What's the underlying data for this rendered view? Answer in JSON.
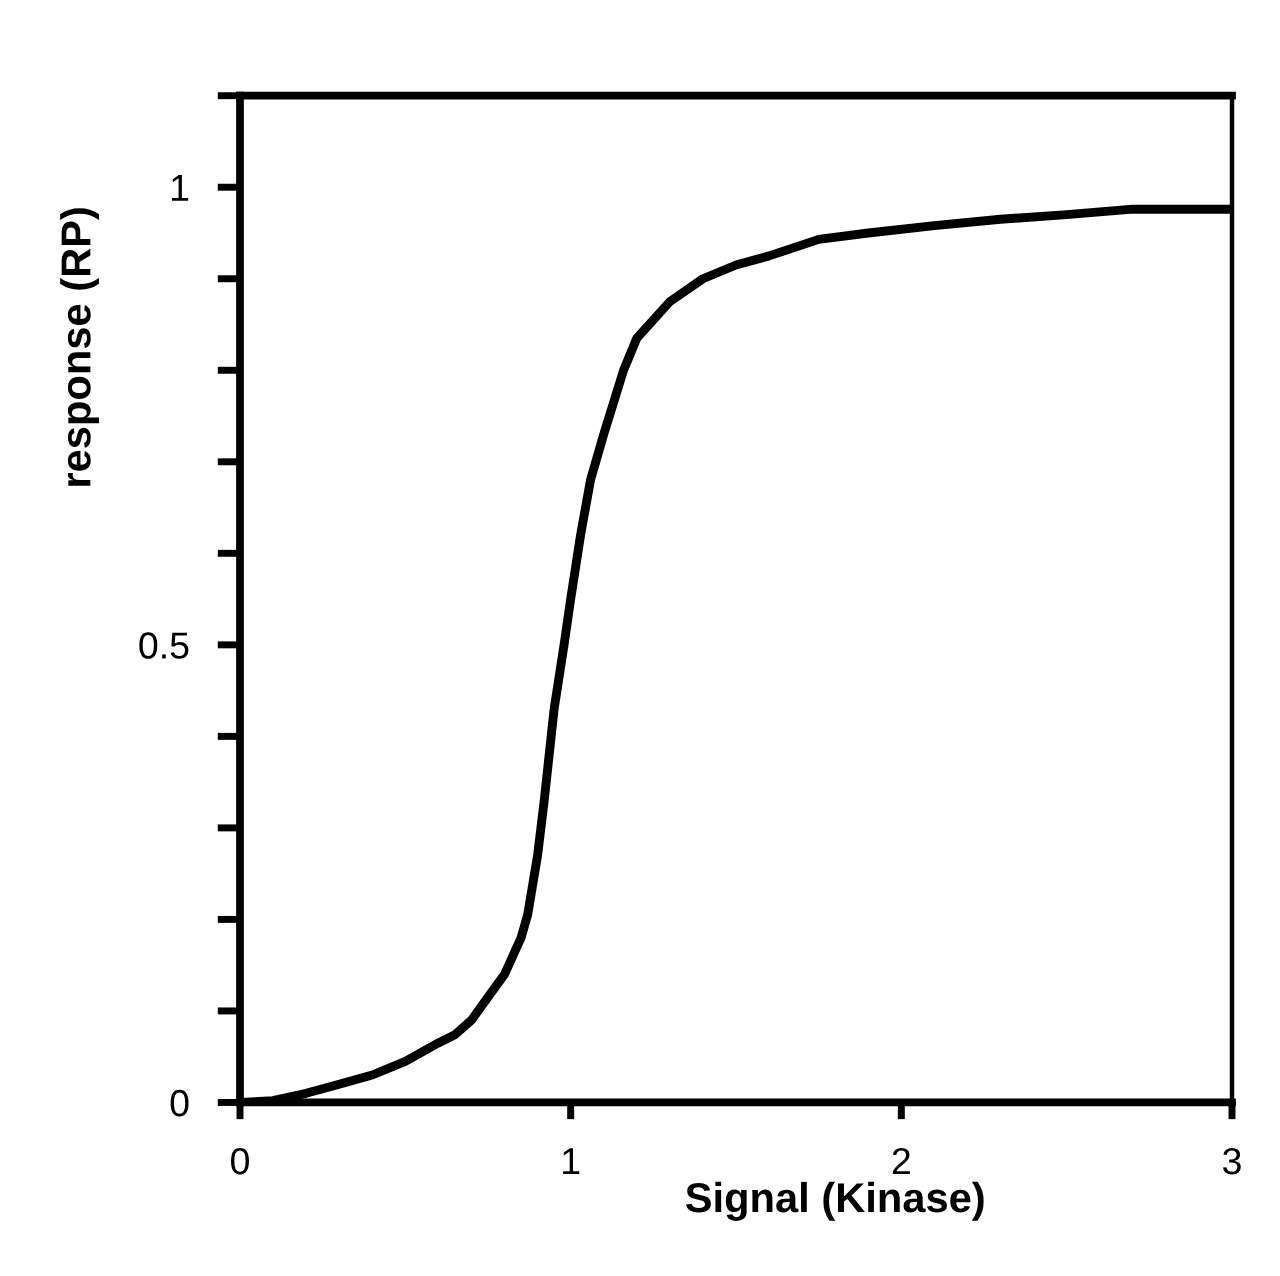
{
  "chart_data": {
    "type": "line",
    "xlabel": "Signal (Kinase)",
    "ylabel": "response (RP)",
    "x": [
      0,
      0.1,
      0.2,
      0.3,
      0.4,
      0.5,
      0.6,
      0.65,
      0.7,
      0.75,
      0.8,
      0.85,
      0.87,
      0.9,
      0.92,
      0.95,
      0.98,
      1.0,
      1.03,
      1.06,
      1.1,
      1.16,
      1.2,
      1.3,
      1.4,
      1.5,
      1.6,
      1.75,
      1.9,
      2.1,
      2.3,
      2.5,
      2.7,
      3.0
    ],
    "series": [
      {
        "color": "#000000",
        "values": [
          0,
          0.002,
          0.01,
          0.02,
          0.03,
          0.045,
          0.065,
          0.074,
          0.09,
          0.115,
          0.14,
          0.18,
          0.205,
          0.27,
          0.33,
          0.43,
          0.5,
          0.55,
          0.62,
          0.68,
          0.73,
          0.8,
          0.835,
          0.875,
          0.9,
          0.915,
          0.925,
          0.943,
          0.95,
          0.958,
          0.965,
          0.97,
          0.976,
          0.976
        ]
      }
    ],
    "xlim": [
      0,
      3
    ],
    "ylim": [
      0,
      1.1
    ],
    "xticks": [
      0,
      1,
      2,
      3
    ],
    "yticks": [
      0,
      {
        "value": 0.1,
        "label": null
      },
      {
        "value": 0.2,
        "label": null
      },
      {
        "value": 0.3,
        "label": null
      },
      {
        "value": 0.4,
        "label": null
      },
      0.5,
      {
        "value": 0.6,
        "label": null
      },
      {
        "value": 0.7,
        "label": null
      },
      {
        "value": 0.8,
        "label": null
      },
      {
        "value": 0.9,
        "label": null
      },
      1,
      {
        "value": 1.1,
        "label": null
      }
    ],
    "grid": false,
    "marker": "none",
    "line_style": "solid"
  }
}
